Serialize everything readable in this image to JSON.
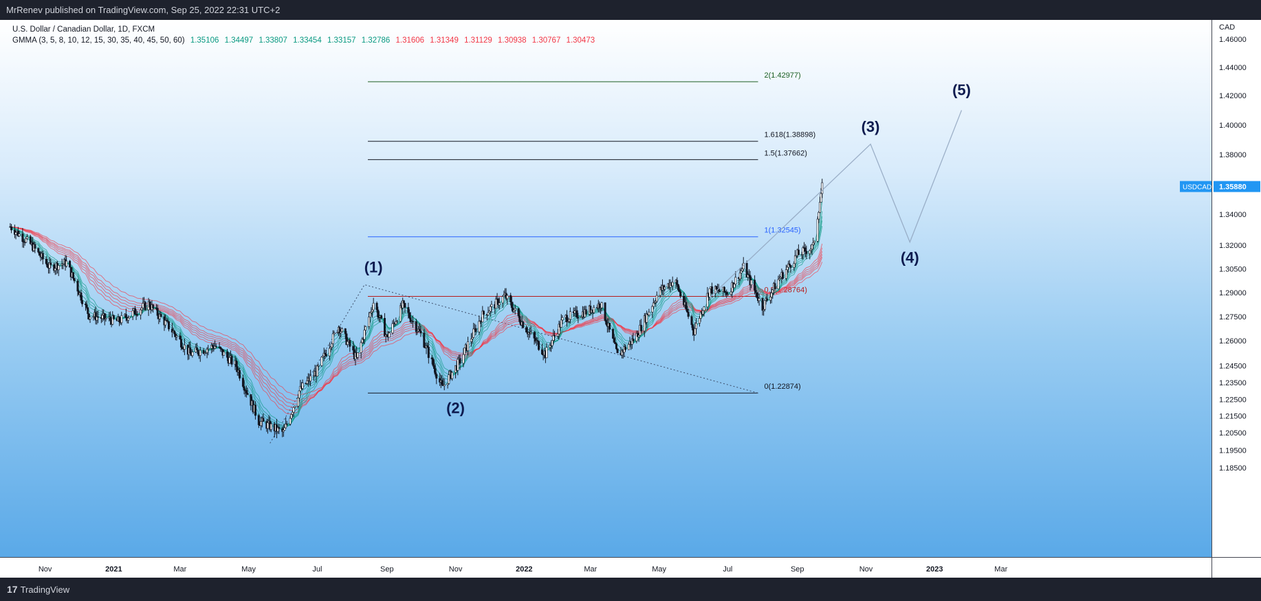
{
  "header": {
    "published_by": "MrRenev published on TradingView.com, Sep 25, 2022 22:31 UTC+2"
  },
  "legend": {
    "symbol_line": "U.S. Dollar / Canadian Dollar, 1D, FXCM",
    "indicator": "GMMA (3, 5, 8, 10, 12, 15, 30, 35, 40, 45, 50, 60)",
    "short_values": [
      "1.35106",
      "1.34497",
      "1.33807",
      "1.33454",
      "1.33157",
      "1.32786"
    ],
    "long_values": [
      "1.31606",
      "1.31349",
      "1.31129",
      "1.30938",
      "1.30767",
      "1.30473"
    ]
  },
  "colors": {
    "short_ema": "#089981",
    "long_ema": "#f23645",
    "accent": "#2962ff",
    "price_badge": "#2196f3"
  },
  "price_axis": {
    "currency": "CAD",
    "badge_symbol": "USDCAD",
    "badge_value": "1.35880"
  },
  "footer": {
    "brand": "TradingView",
    "logo_icon": "tradingview-logo-icon"
  },
  "chart_data": {
    "type": "candlestick",
    "symbol": "USDCAD",
    "timeframe": "1D",
    "ylim": [
      1.185,
      1.47
    ],
    "y_ticks": [
      "1.46000",
      "1.44000",
      "1.42000",
      "1.40000",
      "1.38000",
      "1.36000",
      "1.34000",
      "1.32000",
      "1.30500",
      "1.29000",
      "1.27500",
      "1.26000",
      "1.24500",
      "1.23500",
      "1.22500",
      "1.21500",
      "1.20500",
      "1.19500",
      "1.18500"
    ],
    "x_ticks": [
      "Nov",
      "2021",
      "Mar",
      "May",
      "Jul",
      "Sep",
      "Nov",
      "2022",
      "Mar",
      "May",
      "Jul",
      "Sep",
      "Nov",
      "2023",
      "Mar"
    ],
    "price_path": [
      [
        "2020-10-01",
        1.332
      ],
      [
        "2020-10-20",
        1.32
      ],
      [
        "2020-11-05",
        1.306
      ],
      [
        "2020-11-20",
        1.309
      ],
      [
        "2020-12-10",
        1.276
      ],
      [
        "2021-01-05",
        1.272
      ],
      [
        "2021-02-01",
        1.283
      ],
      [
        "2021-02-20",
        1.268
      ],
      [
        "2021-03-10",
        1.252
      ],
      [
        "2021-04-01",
        1.257
      ],
      [
        "2021-04-20",
        1.245
      ],
      [
        "2021-05-10",
        1.212
      ],
      [
        "2021-06-01",
        1.205
      ],
      [
        "2021-06-15",
        1.23
      ],
      [
        "2021-07-01",
        1.242
      ],
      [
        "2021-07-20",
        1.269
      ],
      [
        "2021-08-05",
        1.249
      ],
      [
        "2021-08-20",
        1.284
      ],
      [
        "2021-09-01",
        1.262
      ],
      [
        "2021-09-15",
        1.282
      ],
      [
        "2021-10-01",
        1.264
      ],
      [
        "2021-10-20",
        1.232
      ],
      [
        "2021-11-05",
        1.248
      ],
      [
        "2021-11-25",
        1.276
      ],
      [
        "2021-12-15",
        1.288
      ],
      [
        "2022-01-05",
        1.265
      ],
      [
        "2022-01-20",
        1.252
      ],
      [
        "2022-02-05",
        1.274
      ],
      [
        "2022-02-25",
        1.278
      ],
      [
        "2022-03-10",
        1.283
      ],
      [
        "2022-03-25",
        1.251
      ],
      [
        "2022-04-10",
        1.262
      ],
      [
        "2022-05-01",
        1.291
      ],
      [
        "2022-05-15",
        1.298
      ],
      [
        "2022-06-01",
        1.266
      ],
      [
        "2022-06-15",
        1.292
      ],
      [
        "2022-07-01",
        1.29
      ],
      [
        "2022-07-15",
        1.306
      ],
      [
        "2022-08-01",
        1.281
      ],
      [
        "2022-08-15",
        1.298
      ],
      [
        "2022-09-01",
        1.314
      ],
      [
        "2022-09-15",
        1.319
      ],
      [
        "2022-09-23",
        1.3588
      ]
    ],
    "fib_levels": [
      {
        "label": "0(1.22874)",
        "value": 1.22874
      },
      {
        "label": "1(1.32545)",
        "value": 1.32545
      },
      {
        "label": "1.5(1.37662)",
        "value": 1.37662
      },
      {
        "label": "1.618(1.38898)",
        "value": 1.38898
      },
      {
        "label": "2(1.42977)",
        "value": 1.42977
      },
      {
        "label": "0.5(1.28764)",
        "value": 1.28764
      }
    ],
    "wave_labels": [
      {
        "label": "(1)",
        "date": "2021-08-20",
        "value": 1.295
      },
      {
        "label": "(2)",
        "date": "2021-11-01",
        "value": 1.229
      },
      {
        "label": "(3)",
        "date": "2022-11-05",
        "value": 1.387
      },
      {
        "label": "(4)",
        "date": "2022-12-10",
        "value": 1.322
      },
      {
        "label": "(5)",
        "date": "2023-01-25",
        "value": 1.41
      }
    ],
    "projection": [
      [
        "2022-06-15",
        1.287
      ],
      [
        "2022-11-05",
        1.387
      ],
      [
        "2022-12-10",
        1.322
      ],
      [
        "2023-01-25",
        1.41
      ]
    ]
  }
}
